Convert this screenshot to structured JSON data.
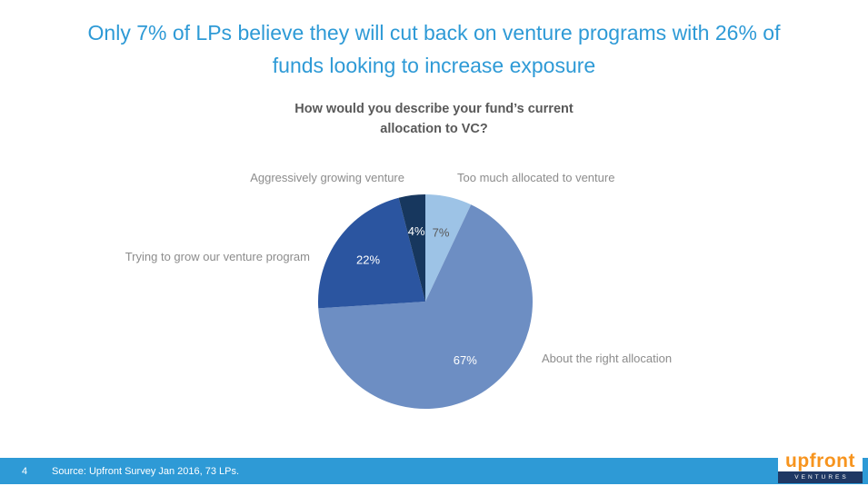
{
  "slide": {
    "title": {
      "line1": "Only 7% of LPs believe they will cut back on venture programs with 26% of",
      "line2": "funds looking to increase exposure"
    },
    "footer": {
      "page_number": "4",
      "source": "Source: Upfront Survey Jan 2016, 73 LPs."
    },
    "logo": {
      "brand": "upfront",
      "sub_brand": "VENTURES",
      "brand_color": "#F7941E",
      "bar_color": "#1F3864"
    },
    "accent_color": "#2E9AD6"
  },
  "chart_data": {
    "type": "pie",
    "title_line1": "How would you describe your fund’s current",
    "title_line2": "allocation to VC?",
    "start_angle_deg": 0,
    "direction": "clockwise",
    "grid": false,
    "legend_position": "outside-labels",
    "slices": [
      {
        "label": "Too much allocated to venture",
        "value": 7,
        "pct_label": "7%",
        "color": "#9DC3E6",
        "pct_color": "#595959"
      },
      {
        "label": "About the right allocation",
        "value": 67,
        "pct_label": "67%",
        "color": "#6D8EC3",
        "pct_color": "#FFFFFF"
      },
      {
        "label": "Trying to grow our venture program",
        "value": 22,
        "pct_label": "22%",
        "color": "#2B55A0",
        "pct_color": "#FFFFFF"
      },
      {
        "label": "Aggressively growing venture",
        "value": 4,
        "pct_label": "4%",
        "color": "#17375E",
        "pct_color": "#FFFFFF"
      }
    ]
  }
}
